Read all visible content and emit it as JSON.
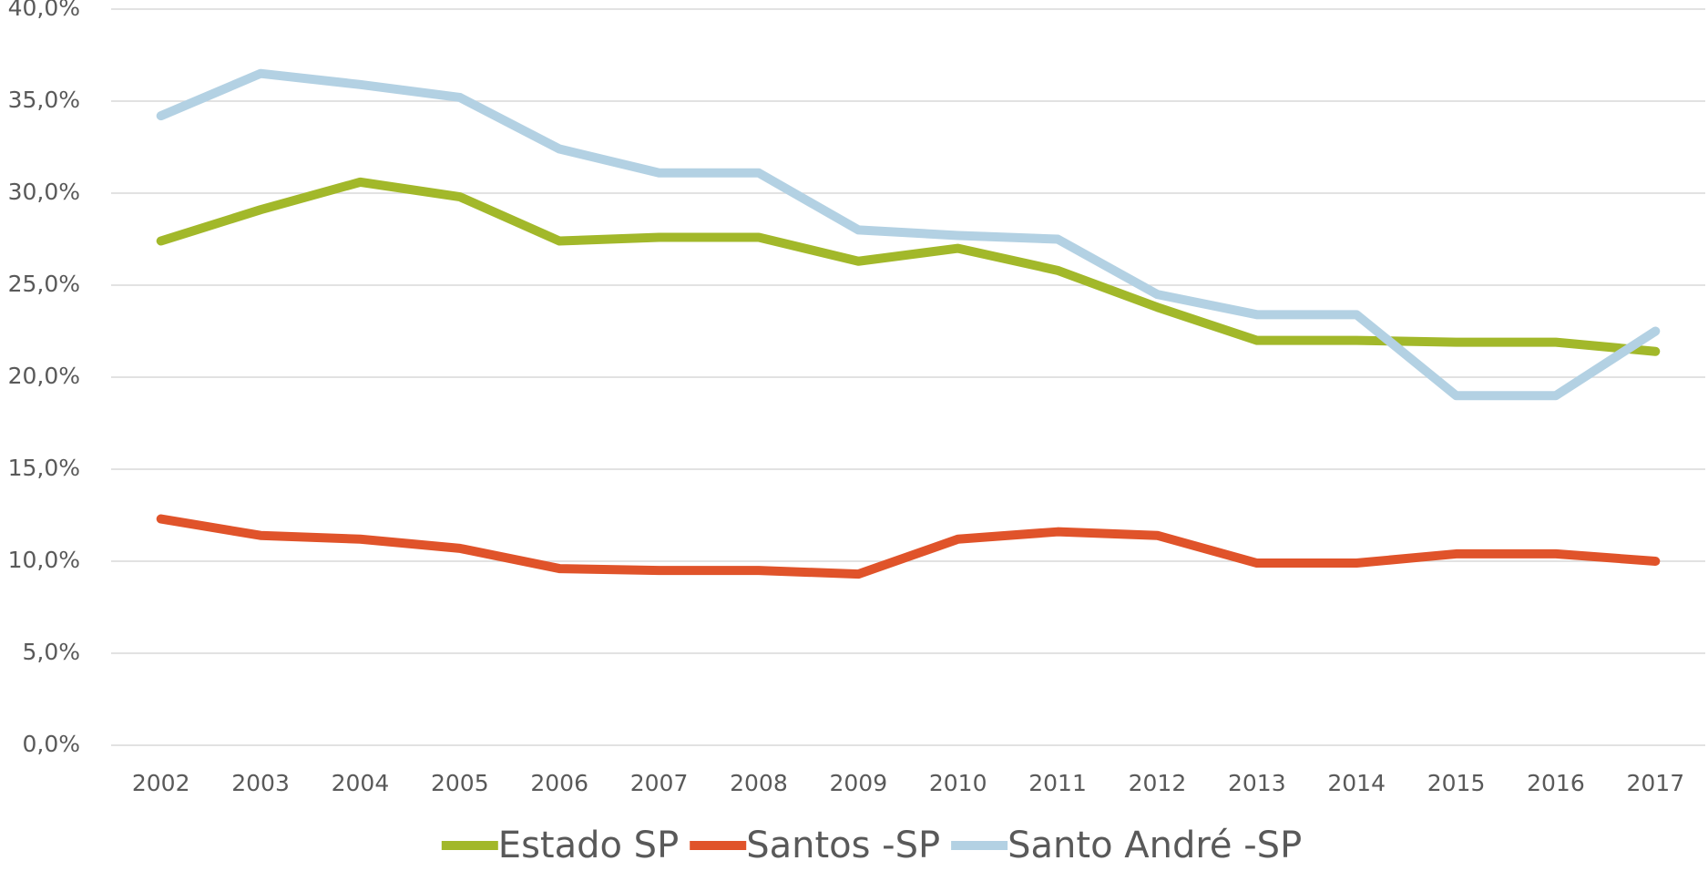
{
  "chart_data": {
    "type": "line",
    "categories": [
      "2002",
      "2003",
      "2004",
      "2005",
      "2006",
      "2007",
      "2008",
      "2009",
      "2010",
      "2011",
      "2012",
      "2013",
      "2014",
      "2015",
      "2016",
      "2017"
    ],
    "series": [
      {
        "name": "Estado SP",
        "color": "#a2b82a",
        "values": [
          27.4,
          29.1,
          30.6,
          29.8,
          27.4,
          27.6,
          27.6,
          26.3,
          27.0,
          25.8,
          23.8,
          22.0,
          22.0,
          21.9,
          21.9,
          21.4
        ]
      },
      {
        "name": "Santos -SP",
        "color": "#e0532a",
        "values": [
          12.3,
          11.4,
          11.2,
          10.7,
          9.6,
          9.5,
          9.5,
          9.3,
          11.2,
          11.6,
          11.4,
          9.9,
          9.9,
          10.4,
          10.4,
          10.0
        ]
      },
      {
        "name": "Santo André -SP",
        "color": "#b3d1e3",
        "values": [
          34.2,
          36.5,
          35.9,
          35.2,
          32.4,
          31.1,
          31.1,
          28.0,
          27.7,
          27.5,
          24.5,
          23.4,
          23.4,
          19.0,
          19.0,
          22.5
        ]
      }
    ],
    "ylim": [
      0,
      40
    ],
    "yticks": [
      {
        "value": 0,
        "label": "0,0%"
      },
      {
        "value": 5,
        "label": "5,0%"
      },
      {
        "value": 10,
        "label": "10,0%"
      },
      {
        "value": 15,
        "label": "15,0%"
      },
      {
        "value": 20,
        "label": "20,0%"
      },
      {
        "value": 25,
        "label": "25,0%"
      },
      {
        "value": 30,
        "label": "30,0%"
      },
      {
        "value": 35,
        "label": "35,0%"
      },
      {
        "value": 40,
        "label": "40,0%"
      }
    ],
    "grid": true,
    "legend": "bottom"
  }
}
